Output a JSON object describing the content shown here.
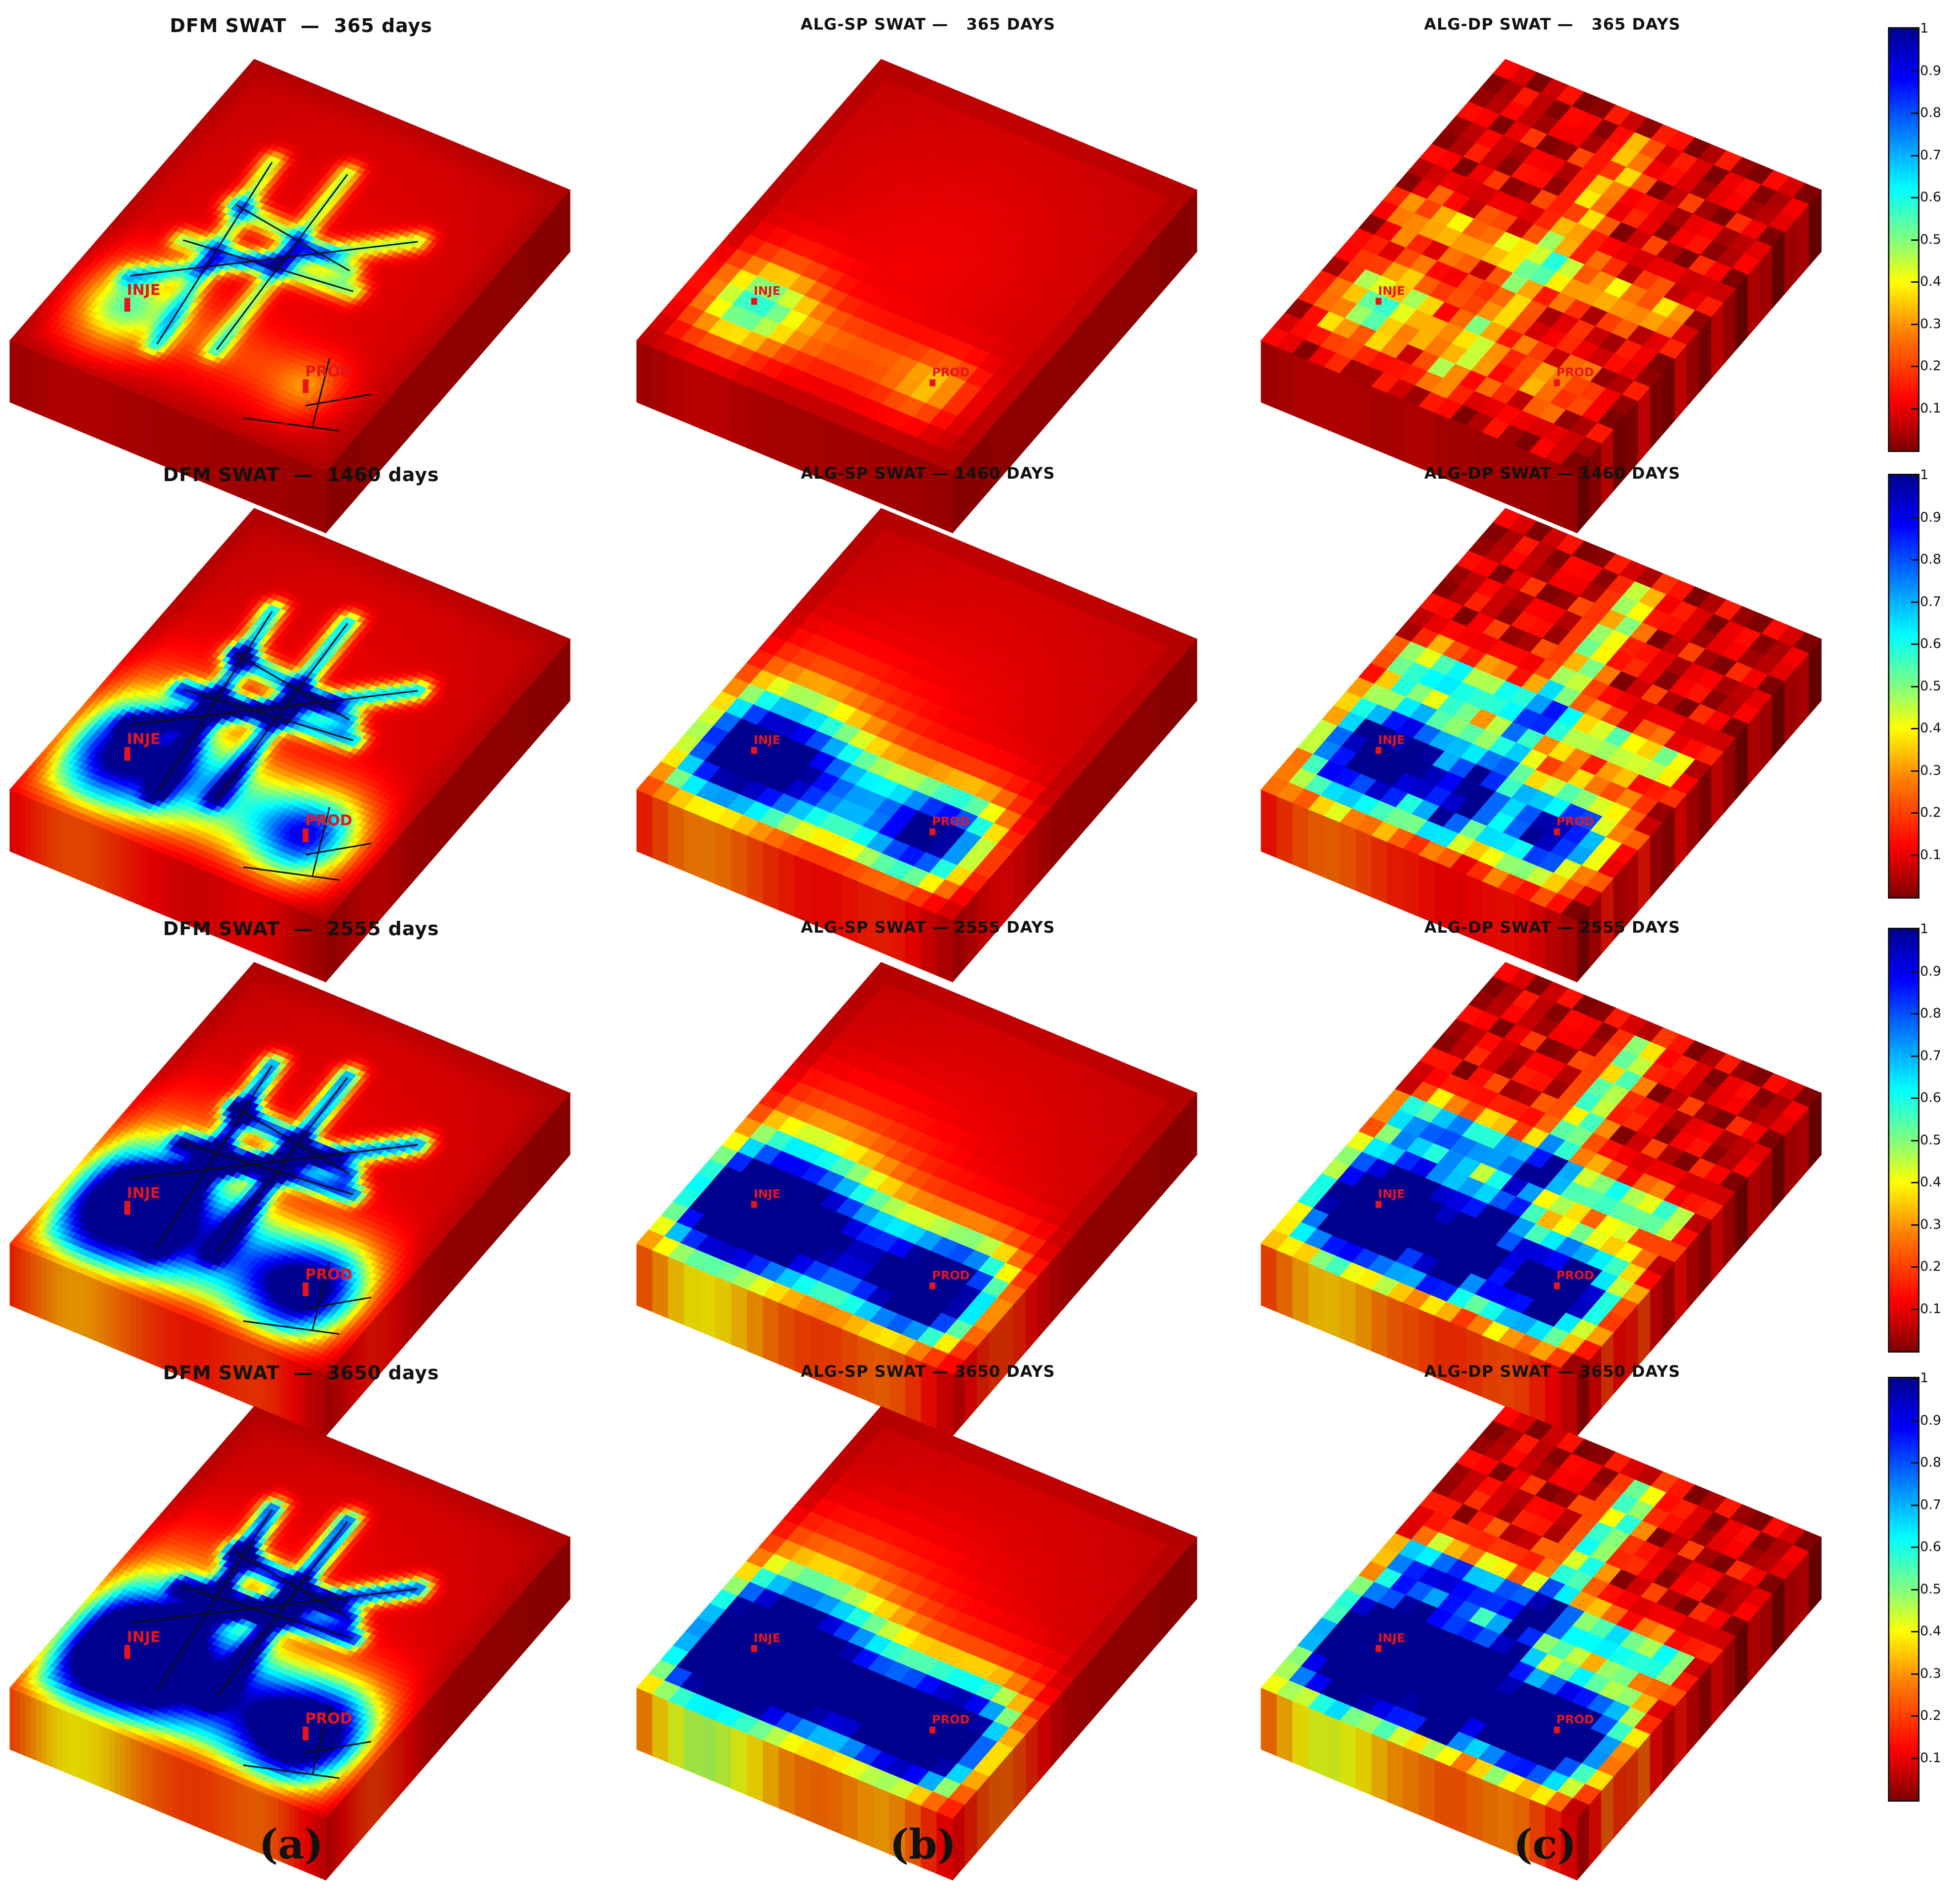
{
  "panels": [
    {
      "kind": "dfm",
      "row": 0,
      "col": 0,
      "title": "DFM SWAT  —  365 days",
      "stage": 0.12
    },
    {
      "kind": "sp",
      "row": 0,
      "col": 1,
      "title": "ALG-SP SWAT —   365 DAYS",
      "stage": 0.15
    },
    {
      "kind": "dp",
      "row": 0,
      "col": 2,
      "title": "ALG-DP SWAT —   365 DAYS",
      "stage": 0.12
    },
    {
      "kind": "dfm",
      "row": 1,
      "col": 0,
      "title": "DFM SWAT  —  1460 days",
      "stage": 0.45
    },
    {
      "kind": "sp",
      "row": 1,
      "col": 1,
      "title": "ALG-SP SWAT — 1460 DAYS",
      "stage": 0.55
    },
    {
      "kind": "dp",
      "row": 1,
      "col": 2,
      "title": "ALG-DP SWAT — 1460 DAYS",
      "stage": 0.5
    },
    {
      "kind": "dfm",
      "row": 2,
      "col": 0,
      "title": "DFM SWAT  —  2555 days",
      "stage": 0.6
    },
    {
      "kind": "sp",
      "row": 2,
      "col": 1,
      "title": "ALG-SP SWAT — 2555 DAYS",
      "stage": 0.7
    },
    {
      "kind": "dp",
      "row": 2,
      "col": 2,
      "title": "ALG-DP SWAT — 2555 DAYS",
      "stage": 0.65
    },
    {
      "kind": "dfm",
      "row": 3,
      "col": 0,
      "title": "DFM SWAT  —  3650 days",
      "stage": 0.7
    },
    {
      "kind": "sp",
      "row": 3,
      "col": 1,
      "title": "ALG-SP SWAT — 3650 DAYS",
      "stage": 0.8
    },
    {
      "kind": "dp",
      "row": 3,
      "col": 2,
      "title": "ALG-DP SWAT — 3650 DAYS",
      "stage": 0.75
    }
  ],
  "wells": {
    "injector": "INJE",
    "producer": "PROD"
  },
  "colorbar": {
    "ticks": [
      "1",
      "0.9",
      "0.8",
      "0.7",
      "0.6",
      "0.5",
      "0.4",
      "0.3",
      "0.2",
      "0.1"
    ],
    "min": 0,
    "max": 1
  },
  "subfigure_labels": [
    "(a)",
    "(b)",
    "(c)"
  ]
}
